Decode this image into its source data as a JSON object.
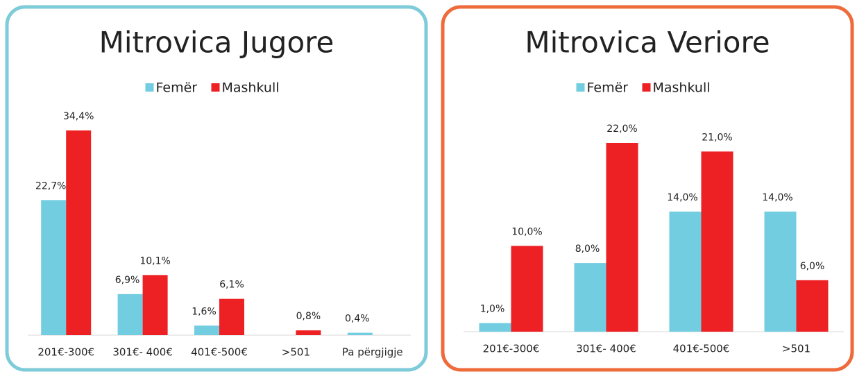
{
  "chart_data": [
    {
      "type": "bar",
      "title": "Mitrovica Jugore",
      "categories": [
        "201€-300€",
        "301€- 400€",
        "401€-500€",
        ">501",
        "Pa përgjigje"
      ],
      "series": [
        {
          "name": "Femër",
          "color": "#72cde0",
          "values": [
            22.7,
            6.9,
            1.6,
            null,
            0.4
          ],
          "value_labels": [
            "22,7%",
            "6,9%",
            "1,6%",
            null,
            "0,4%"
          ]
        },
        {
          "name": "Mashkull",
          "color": "#ed2024",
          "values": [
            34.4,
            10.1,
            6.1,
            0.8,
            null
          ],
          "value_labels": [
            "34,4%",
            "10,1%",
            "6,1%",
            "0,8%",
            null
          ]
        }
      ],
      "border_color": "#7ecbd9"
    },
    {
      "type": "bar",
      "title": "Mitrovica Veriore",
      "categories": [
        "201€-300€",
        "301€- 400€",
        "401€-500€",
        ">501"
      ],
      "series": [
        {
          "name": "Femër",
          "color": "#72cde0",
          "values": [
            1.0,
            8.0,
            14.0,
            14.0
          ],
          "value_labels": [
            "1,0%",
            "8,0%",
            "14,0%",
            "14,0%"
          ]
        },
        {
          "name": "Mashkull",
          "color": "#ed2024",
          "values": [
            10.0,
            22.0,
            21.0,
            6.0
          ],
          "value_labels": [
            "10,0%",
            "22,0%",
            "21,0%",
            "6,0%"
          ]
        }
      ],
      "border_color": "#ee6b3b"
    }
  ]
}
